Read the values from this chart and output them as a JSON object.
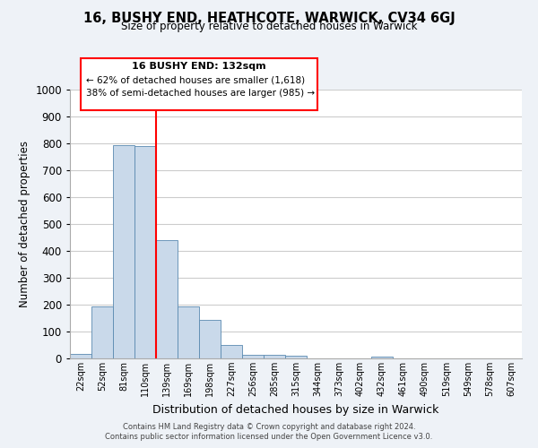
{
  "title": "16, BUSHY END, HEATHCOTE, WARWICK, CV34 6GJ",
  "subtitle": "Size of property relative to detached houses in Warwick",
  "xlabel": "Distribution of detached houses by size in Warwick",
  "ylabel": "Number of detached properties",
  "bin_labels": [
    "22sqm",
    "52sqm",
    "81sqm",
    "110sqm",
    "139sqm",
    "169sqm",
    "198sqm",
    "227sqm",
    "256sqm",
    "285sqm",
    "315sqm",
    "344sqm",
    "373sqm",
    "402sqm",
    "432sqm",
    "461sqm",
    "490sqm",
    "519sqm",
    "549sqm",
    "578sqm",
    "607sqm"
  ],
  "bar_heights": [
    18,
    192,
    793,
    790,
    440,
    195,
    142,
    50,
    15,
    12,
    9,
    0,
    0,
    0,
    8,
    0,
    0,
    0,
    0,
    0,
    0
  ],
  "bar_color": "#c9d9ea",
  "bar_edge_color": "#5a8ab0",
  "vline_color": "red",
  "ylim": [
    0,
    1000
  ],
  "yticks": [
    0,
    100,
    200,
    300,
    400,
    500,
    600,
    700,
    800,
    900,
    1000
  ],
  "annotation_title": "16 BUSHY END: 132sqm",
  "annotation_line1": "← 62% of detached houses are smaller (1,618)",
  "annotation_line2": "38% of semi-detached houses are larger (985) →",
  "footer_line1": "Contains HM Land Registry data © Crown copyright and database right 2024.",
  "footer_line2": "Contains public sector information licensed under the Open Government Licence v3.0.",
  "bg_color": "#eef2f7",
  "plot_bg_color": "#ffffff",
  "grid_color": "#cccccc"
}
